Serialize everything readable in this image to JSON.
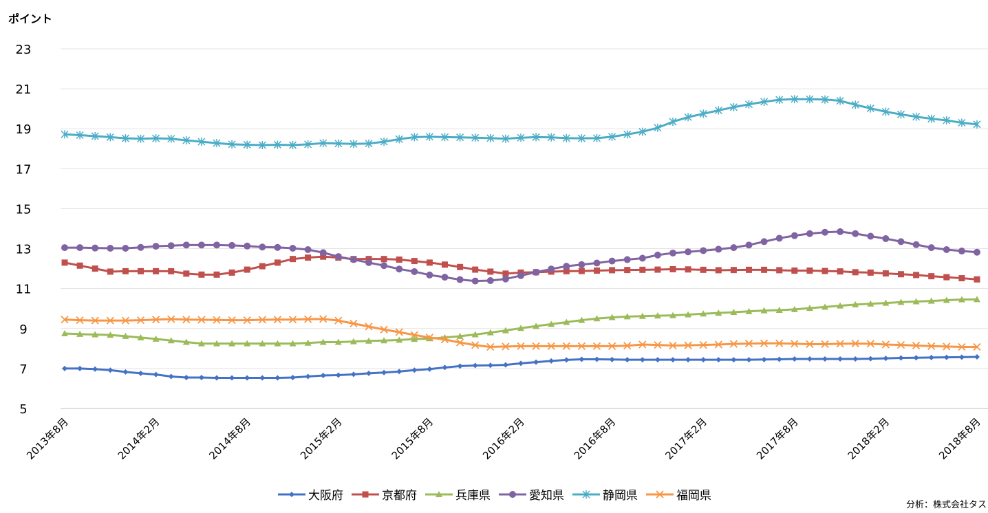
{
  "y_axis_title": "ポイント",
  "credit": "分析：株式会社タス",
  "chart_data": {
    "type": "line",
    "title": "",
    "ylabel": "ポイント",
    "xlabel": "",
    "ylim": [
      5,
      23
    ],
    "yticks": [
      5,
      7,
      9,
      11,
      13,
      15,
      17,
      19,
      21,
      23
    ],
    "x": [
      "2013-08",
      "2013-09",
      "2013-10",
      "2013-11",
      "2013-12",
      "2014-01",
      "2014-02",
      "2014-03",
      "2014-04",
      "2014-05",
      "2014-06",
      "2014-07",
      "2014-08",
      "2014-09",
      "2014-10",
      "2014-11",
      "2014-12",
      "2015-01",
      "2015-02",
      "2015-03",
      "2015-04",
      "2015-05",
      "2015-06",
      "2015-07",
      "2015-08",
      "2015-09",
      "2015-10",
      "2015-11",
      "2015-12",
      "2016-01",
      "2016-02",
      "2016-03",
      "2016-04",
      "2016-05",
      "2016-06",
      "2016-07",
      "2016-08",
      "2016-09",
      "2016-10",
      "2016-11",
      "2016-12",
      "2017-01",
      "2017-02",
      "2017-03",
      "2017-04",
      "2017-05",
      "2017-06",
      "2017-07",
      "2017-08",
      "2017-09",
      "2017-10",
      "2017-11",
      "2017-12",
      "2018-01",
      "2018-02",
      "2018-03",
      "2018-04",
      "2018-05",
      "2018-06",
      "2018-07",
      "2018-08"
    ],
    "x_tick_labels": [
      "2013年8月",
      "2014年2月",
      "2014年8月",
      "2015年2月",
      "2015年8月",
      "2016年2月",
      "2016年8月",
      "2017年2月",
      "2017年8月",
      "2018年2月",
      "2018年8月"
    ],
    "grid": "horizontal",
    "legend_position": "bottom",
    "series": [
      {
        "name": "大阪府",
        "color": "#4472C4",
        "marker": "diamond",
        "values": [
          7.0,
          7.0,
          6.97,
          6.92,
          6.83,
          6.76,
          6.7,
          6.6,
          6.55,
          6.55,
          6.53,
          6.53,
          6.53,
          6.53,
          6.53,
          6.55,
          6.6,
          6.65,
          6.67,
          6.71,
          6.76,
          6.8,
          6.85,
          6.92,
          6.97,
          7.05,
          7.12,
          7.15,
          7.16,
          7.18,
          7.26,
          7.32,
          7.38,
          7.43,
          7.46,
          7.46,
          7.45,
          7.44,
          7.44,
          7.44,
          7.44,
          7.44,
          7.44,
          7.44,
          7.44,
          7.44,
          7.45,
          7.46,
          7.48,
          7.48,
          7.48,
          7.48,
          7.48,
          7.49,
          7.51,
          7.53,
          7.54,
          7.55,
          7.56,
          7.57,
          7.58
        ]
      },
      {
        "name": "京都府",
        "color": "#C0504D",
        "marker": "square",
        "values": [
          12.3,
          12.15,
          12.0,
          11.85,
          11.87,
          11.87,
          11.87,
          11.87,
          11.75,
          11.7,
          11.7,
          11.8,
          11.95,
          12.12,
          12.3,
          12.48,
          12.55,
          12.6,
          12.55,
          12.48,
          12.48,
          12.48,
          12.45,
          12.38,
          12.3,
          12.2,
          12.08,
          11.95,
          11.85,
          11.75,
          11.8,
          11.82,
          11.85,
          11.87,
          11.88,
          11.9,
          11.92,
          11.93,
          11.94,
          11.95,
          11.97,
          11.96,
          11.94,
          11.92,
          11.93,
          11.94,
          11.94,
          11.92,
          11.9,
          11.9,
          11.88,
          11.86,
          11.82,
          11.8,
          11.76,
          11.72,
          11.68,
          11.62,
          11.57,
          11.52,
          11.46
        ]
      },
      {
        "name": "兵庫県",
        "color": "#9BBB59",
        "marker": "triangle",
        "values": [
          8.75,
          8.72,
          8.7,
          8.68,
          8.62,
          8.55,
          8.48,
          8.4,
          8.32,
          8.25,
          8.25,
          8.25,
          8.25,
          8.25,
          8.25,
          8.25,
          8.28,
          8.32,
          8.32,
          8.35,
          8.38,
          8.4,
          8.43,
          8.47,
          8.5,
          8.55,
          8.62,
          8.7,
          8.8,
          8.9,
          9.02,
          9.12,
          9.22,
          9.32,
          9.42,
          9.5,
          9.56,
          9.6,
          9.62,
          9.64,
          9.66,
          9.7,
          9.74,
          9.78,
          9.82,
          9.86,
          9.9,
          9.92,
          9.96,
          10.02,
          10.08,
          10.14,
          10.2,
          10.24,
          10.28,
          10.32,
          10.35,
          10.38,
          10.42,
          10.45,
          10.46
        ]
      },
      {
        "name": "愛知県",
        "color": "#8064A2",
        "marker": "circle",
        "values": [
          13.05,
          13.05,
          13.03,
          13.02,
          13.02,
          13.06,
          13.12,
          13.15,
          13.18,
          13.18,
          13.18,
          13.16,
          13.13,
          13.08,
          13.06,
          13.02,
          12.95,
          12.8,
          12.6,
          12.45,
          12.3,
          12.15,
          11.98,
          11.85,
          11.68,
          11.57,
          11.45,
          11.38,
          11.4,
          11.48,
          11.65,
          11.82,
          11.98,
          12.12,
          12.2,
          12.28,
          12.38,
          12.45,
          12.52,
          12.68,
          12.78,
          12.84,
          12.9,
          12.97,
          13.05,
          13.18,
          13.35,
          13.52,
          13.65,
          13.75,
          13.82,
          13.85,
          13.75,
          13.62,
          13.5,
          13.35,
          13.2,
          13.05,
          12.95,
          12.88,
          12.82
        ]
      },
      {
        "name": "静岡県",
        "color": "#4BACC6",
        "marker": "asterisk",
        "values": [
          18.72,
          18.68,
          18.63,
          18.58,
          18.52,
          18.5,
          18.52,
          18.5,
          18.42,
          18.35,
          18.28,
          18.22,
          18.2,
          18.18,
          18.2,
          18.18,
          18.22,
          18.28,
          18.26,
          18.24,
          18.26,
          18.35,
          18.48,
          18.58,
          18.6,
          18.58,
          18.57,
          18.55,
          18.53,
          18.5,
          18.55,
          18.58,
          18.57,
          18.53,
          18.52,
          18.53,
          18.6,
          18.72,
          18.85,
          19.05,
          19.35,
          19.58,
          19.75,
          19.92,
          20.08,
          20.22,
          20.35,
          20.45,
          20.48,
          20.48,
          20.46,
          20.4,
          20.2,
          20.02,
          19.85,
          19.72,
          19.6,
          19.5,
          19.42,
          19.3,
          19.22
        ]
      },
      {
        "name": "福岡県",
        "color": "#F79646",
        "marker": "x",
        "values": [
          9.45,
          9.42,
          9.4,
          9.4,
          9.4,
          9.42,
          9.45,
          9.47,
          9.45,
          9.44,
          9.43,
          9.42,
          9.42,
          9.44,
          9.45,
          9.45,
          9.47,
          9.48,
          9.4,
          9.25,
          9.1,
          8.95,
          8.82,
          8.68,
          8.55,
          8.45,
          8.3,
          8.17,
          8.08,
          8.1,
          8.12,
          8.12,
          8.12,
          8.12,
          8.12,
          8.12,
          8.12,
          8.14,
          8.2,
          8.18,
          8.15,
          8.16,
          8.18,
          8.2,
          8.23,
          8.25,
          8.26,
          8.26,
          8.24,
          8.22,
          8.22,
          8.24,
          8.25,
          8.24,
          8.2,
          8.18,
          8.15,
          8.12,
          8.1,
          8.08,
          8.08
        ]
      }
    ]
  }
}
